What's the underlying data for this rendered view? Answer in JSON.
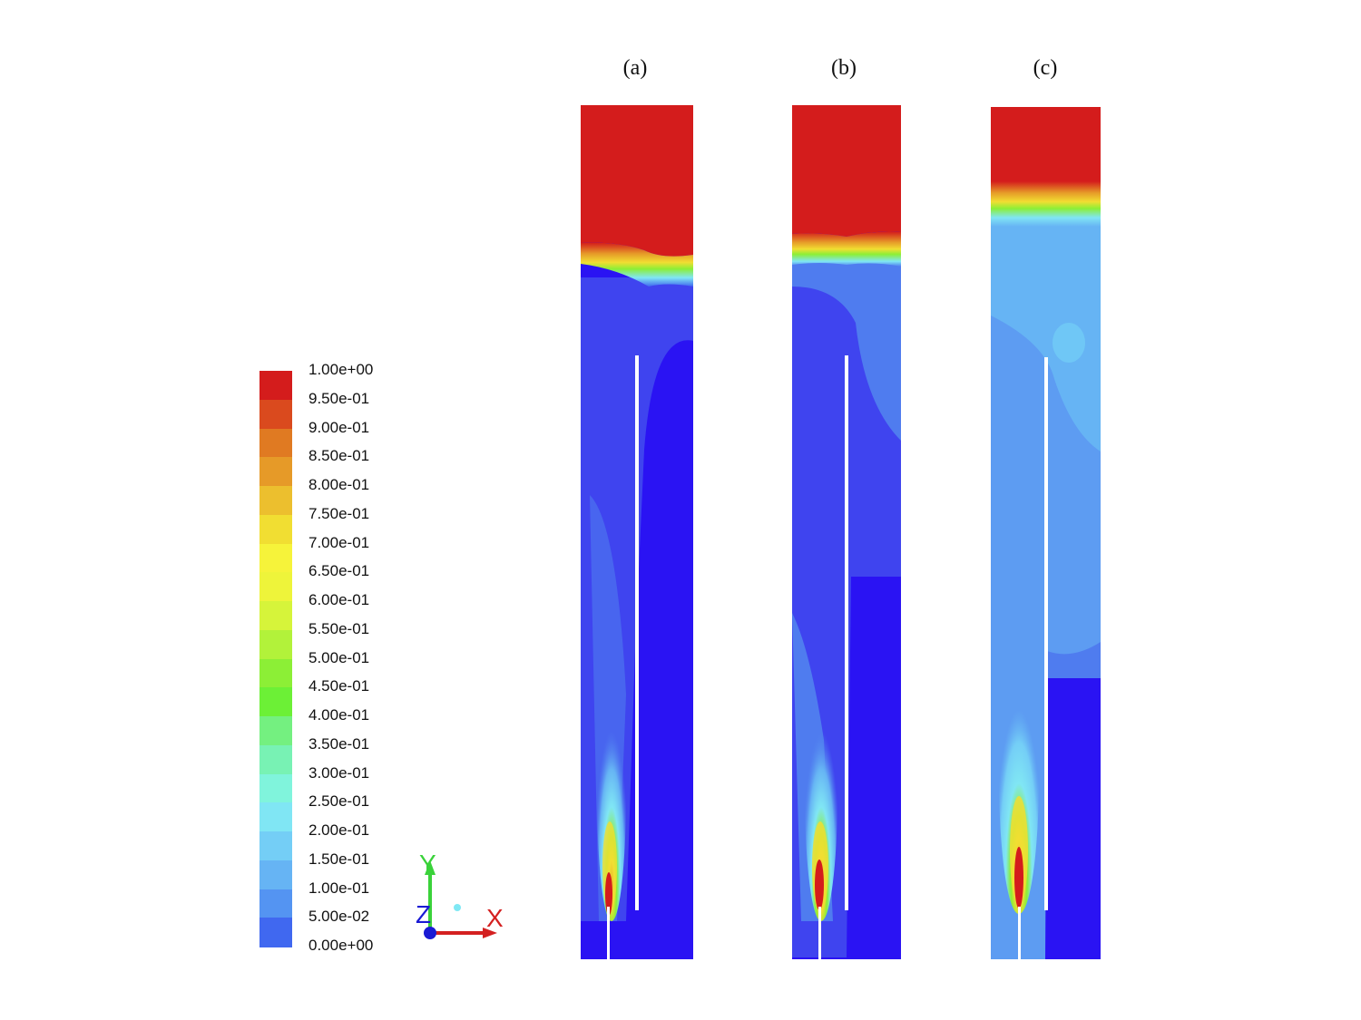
{
  "legend": {
    "labels": [
      "1.00e+00",
      "9.50e-01",
      "9.00e-01",
      "8.50e-01",
      "8.00e-01",
      "7.50e-01",
      "7.00e-01",
      "6.50e-01",
      "6.00e-01",
      "5.50e-01",
      "5.00e-01",
      "4.50e-01",
      "4.00e-01",
      "3.50e-01",
      "3.00e-01",
      "2.50e-01",
      "2.00e-01",
      "1.50e-01",
      "1.00e-01",
      "5.00e-02",
      "0.00e+00"
    ],
    "colors": [
      "#d41c1c",
      "#da4a1e",
      "#e07a22",
      "#e69a28",
      "#ecbf2e",
      "#f1de32",
      "#f6f33a",
      "#eef43a",
      "#d6f43a",
      "#b2f23a",
      "#8cef36",
      "#6cf036",
      "#74f080",
      "#78f2b4",
      "#80f4dc",
      "#80e6f4",
      "#74cef6",
      "#66b4f4",
      "#5494f2",
      "#4068f0",
      "#2c18f4"
    ]
  },
  "panels": [
    {
      "label": "(a)"
    },
    {
      "label": "(b)"
    },
    {
      "label": "(c)"
    }
  ],
  "axes": {
    "y": "Y",
    "z": "Z",
    "x": "X"
  },
  "colors": {
    "red": "#cf1717",
    "blue": "#2a13f3",
    "blue2": "#3f44ef",
    "blue3": "#4f7cef",
    "blue4": "#5d9cf2",
    "cyan": "#7fe8f4"
  }
}
